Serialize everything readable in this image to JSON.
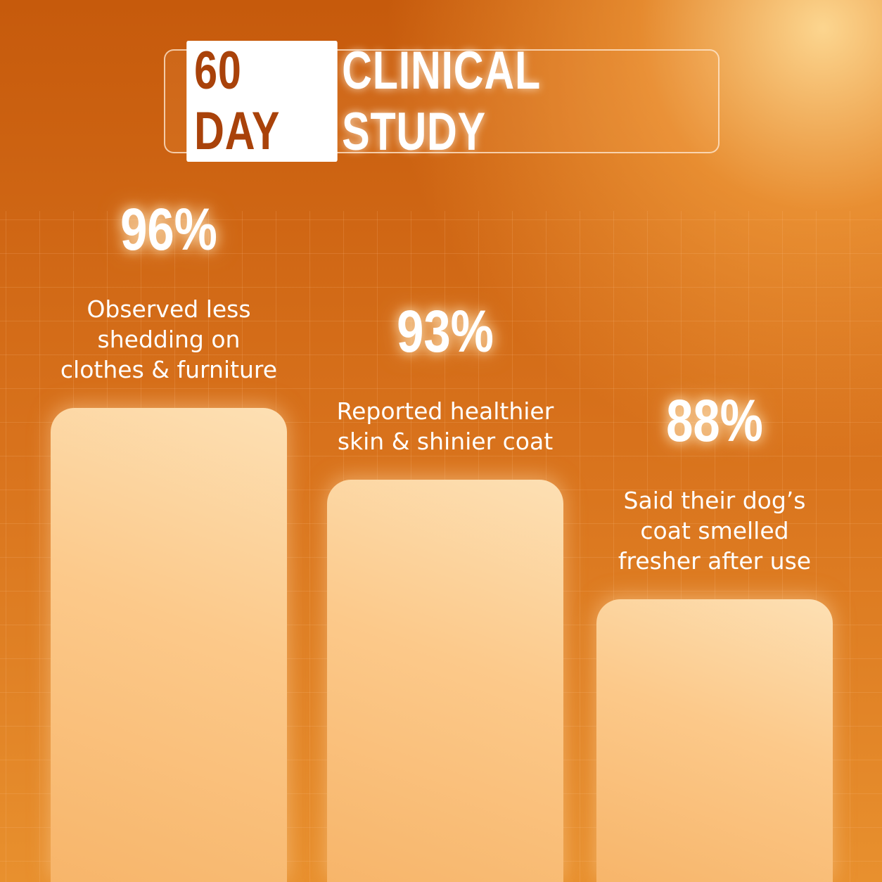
{
  "chart_data": {
    "type": "bar",
    "title_badge": "60 DAY",
    "title": "CLINICAL STUDY",
    "categories": [
      [
        "Observed less",
        "shedding on",
        "clothes & furniture"
      ],
      [
        "Reported healthier",
        "skin & shinier coat"
      ],
      [
        "Said their dog’s",
        "coat smelled",
        "fresher after use"
      ]
    ],
    "values": [
      96,
      93,
      88
    ],
    "value_labels": [
      "96%",
      "93%",
      "88%"
    ],
    "color": "#fcc98a"
  }
}
